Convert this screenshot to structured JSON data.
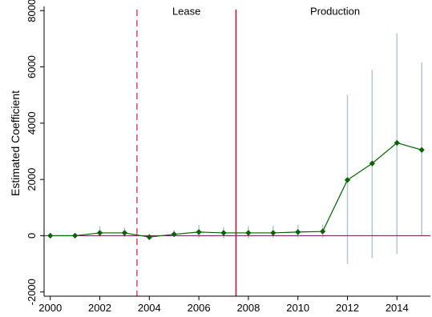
{
  "chart_data": {
    "type": "line",
    "title": "",
    "xlabel": "",
    "ylabel": "Estimated Coefficient",
    "xlim": [
      1999.75,
      2015.35
    ],
    "ylim": [
      -2150,
      8150
    ],
    "xticks": [
      2000,
      2002,
      2004,
      2006,
      2008,
      2010,
      2012,
      2014
    ],
    "yticks": [
      -2000,
      0,
      2000,
      4000,
      6000,
      8000
    ],
    "grid": false,
    "legend": "none",
    "series": [
      {
        "x": [
          2000,
          2001,
          2002,
          2003,
          2004,
          2005,
          2006,
          2007,
          2008,
          2009,
          2010,
          2011,
          2012,
          2013,
          2014,
          2015
        ],
        "values": [
          0,
          0,
          100,
          100,
          -50,
          50,
          130,
          100,
          100,
          100,
          130,
          150,
          1980,
          2570,
          3300,
          3050
        ],
        "ci_low": [
          0,
          -60,
          -60,
          -60,
          -60,
          -40,
          -80,
          -100,
          -100,
          -80,
          -70,
          -80,
          -1000,
          -800,
          -650,
          0
        ],
        "ci_high": [
          0,
          60,
          340,
          290,
          60,
          200,
          380,
          300,
          340,
          350,
          380,
          400,
          5000,
          5900,
          7200,
          6150
        ],
        "color": "#006400",
        "ci_color": "#b3c7c7"
      }
    ],
    "reference_lines": {
      "hline": {
        "y": 0,
        "color": "#7b2a6b"
      },
      "vlines": [
        {
          "x": 2003.5,
          "color": "#d4567c",
          "style": "dashed"
        },
        {
          "x": 2007.5,
          "color": "#b0183f",
          "style": "solid"
        }
      ]
    },
    "annotations": [
      {
        "text": "Lease",
        "x": 2005.5,
        "y": 8000
      },
      {
        "text": "Production",
        "x": 2011.5,
        "y": 8000
      }
    ]
  }
}
